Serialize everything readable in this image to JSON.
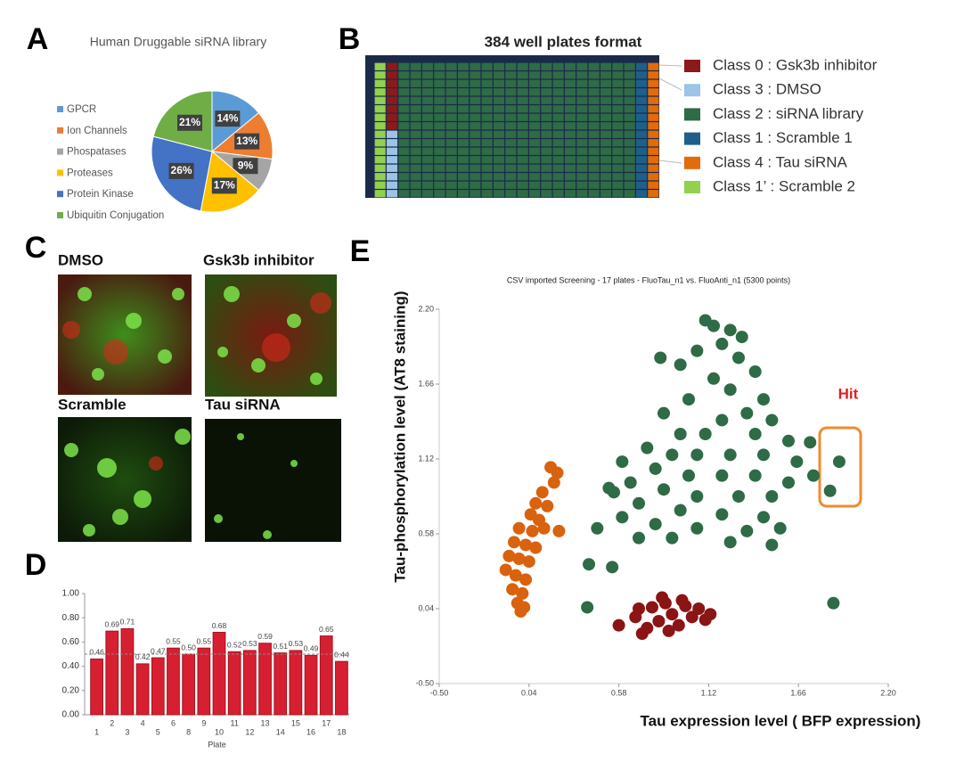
{
  "panel_letters": [
    "A",
    "B",
    "C",
    "D",
    "E"
  ],
  "plate": {
    "title": "384 well plates format",
    "legend": [
      {
        "label": "Class 0 : Gsk3b inhibitor",
        "color": "#8b1a1a"
      },
      {
        "label": "Class 3 : DMSO",
        "color": "#9dc3e6"
      },
      {
        "label": "Class 2 : siRNA library",
        "color": "#2e6b46"
      },
      {
        "label": "Class 1 : Scramble 1",
        "color": "#1f5f8b"
      },
      {
        "label": "Class 4 : Tau siRNA",
        "color": "#e26b0a"
      },
      {
        "label": "Class 1’ : Scramble 2",
        "color": "#92d050"
      }
    ]
  },
  "images": {
    "labels": [
      "DMSO",
      "Gsk3b inhibitor",
      "Scramble",
      "Tau siRNA"
    ]
  },
  "chart_data": [
    {
      "type": "pie",
      "title": "Human Druggable siRNA library",
      "categories": [
        "GPCR",
        "Ion Channels",
        "Phospatases",
        "Proteases",
        "Protein Kinase",
        "Ubiquitin Conjugation"
      ],
      "values": [
        14,
        13,
        9,
        17,
        26,
        21
      ],
      "value_labels": [
        "14%",
        "13%",
        "9%",
        "17%",
        "26%",
        "21%"
      ],
      "colors": [
        "#5b9bd5",
        "#ed7d31",
        "#a5a5a5",
        "#ffc000",
        "#4472c4",
        "#70ad47"
      ]
    },
    {
      "type": "bar",
      "x_label": "Plate",
      "categories": [
        "1",
        "2",
        "3",
        "4",
        "5",
        "6",
        "8",
        "9",
        "10",
        "11",
        "12",
        "13",
        "14",
        "15",
        "16",
        "17",
        "18"
      ],
      "values": [
        0.46,
        0.69,
        0.71,
        0.42,
        0.47,
        0.55,
        0.5,
        0.55,
        0.68,
        0.52,
        0.53,
        0.59,
        0.51,
        0.53,
        0.49,
        0.65,
        0.44
      ],
      "value_labels": [
        "0.46",
        "0.69",
        "0.71",
        "0.42",
        "0.47",
        "0.55",
        "0.50",
        "0.55",
        "0.68",
        "0.52",
        "0.53",
        "0.59",
        "0.51",
        "0.53",
        "0.49",
        "0.65",
        "0.44"
      ],
      "color": "#d62031",
      "hline": 0.5,
      "ylim": [
        0,
        1
      ],
      "yticks": [
        {
          "value": 0,
          "label": "0.00"
        },
        {
          "value": 0.2,
          "label": "0.20"
        },
        {
          "value": 0.4,
          "label": "0.40"
        },
        {
          "value": 0.6,
          "label": "0.60"
        },
        {
          "value": 0.8,
          "label": "0.80"
        },
        {
          "value": 1,
          "label": "1.00"
        }
      ]
    },
    {
      "type": "scatter",
      "title": "CSV imported Screening - 17 plates - FluoTau_n1 vs. FluoAnti_n1 (5300 points)",
      "x_label": "Tau expression level ( BFP expression)",
      "y_label": "Tau-phosphorylation level (AT8 staining)",
      "annotation": "Hit",
      "xlim": [
        -0.5,
        2.2
      ],
      "ylim": [
        -0.5,
        2.2
      ],
      "xticks": [
        {
          "value": -0.5,
          "label": "-0.50"
        },
        0.04,
        0.58,
        1.12,
        1.66,
        {
          "value": 2.2,
          "label": "2.20"
        }
      ],
      "yticks": [
        {
          "value": -0.5,
          "label": "-0.50"
        },
        0.04,
        0.58,
        1.12,
        1.66,
        {
          "value": 2.2,
          "label": "2.20"
        }
      ],
      "series": [
        {
          "color": "#2e6b46",
          "x": [
            1.1,
            1.15,
            1.25,
            1.32,
            1.2,
            1.05,
            0.95,
            1.3,
            1.4,
            1.15,
            1.25,
            1.45,
            1.0,
            0.85,
            1.35,
            1.5,
            1.2,
            0.95,
            1.1,
            1.4,
            1.6,
            0.75,
            0.9,
            1.05,
            1.25,
            1.45,
            1.65,
            0.6,
            0.8,
            1.0,
            1.2,
            1.4,
            1.6,
            1.75,
            0.65,
            0.85,
            1.05,
            1.3,
            1.5,
            0.55,
            0.7,
            0.95,
            1.2,
            1.45,
            0.6,
            0.8,
            1.05,
            1.35,
            1.55,
            0.45,
            0.9,
            1.25,
            0.7,
            0.83,
            1.73,
            1.905,
            1.85,
            1.87,
            0.39,
            0.4,
            0.54,
            1.5,
            0.52
          ],
          "y": [
            2.12,
            2.08,
            2.05,
            2.0,
            1.95,
            1.9,
            1.8,
            1.85,
            1.75,
            1.7,
            1.62,
            1.55,
            1.55,
            1.45,
            1.45,
            1.4,
            1.4,
            1.3,
            1.3,
            1.3,
            1.25,
            1.2,
            1.15,
            1.15,
            1.15,
            1.15,
            1.1,
            1.1,
            1.05,
            1.0,
            1.0,
            1.0,
            0.95,
            1.0,
            0.95,
            0.9,
            0.85,
            0.85,
            0.85,
            0.88,
            0.8,
            0.75,
            0.72,
            0.7,
            0.7,
            0.65,
            0.62,
            0.6,
            0.62,
            0.62,
            0.55,
            0.52,
            0.55,
            1.85,
            1.24,
            1.1,
            0.89,
            0.08,
            0.05,
            0.36,
            0.34,
            0.5,
            0.91
          ]
        },
        {
          "color": "#d9620f",
          "x": [
            0.17,
            0.21,
            0.19,
            0.12,
            0.08,
            0.15,
            0.05,
            0.1,
            -0.02,
            0.06,
            0.13,
            -0.05,
            0.02,
            0.08,
            -0.08,
            -0.02,
            0.04,
            -0.1,
            -0.04,
            0.02,
            -0.06,
            0.0,
            -0.03,
            0.01,
            -0.01,
            0.22
          ],
          "y": [
            1.06,
            1.02,
            0.95,
            0.88,
            0.8,
            0.78,
            0.72,
            0.68,
            0.62,
            0.6,
            0.62,
            0.52,
            0.5,
            0.48,
            0.42,
            0.4,
            0.38,
            0.32,
            0.28,
            0.25,
            0.18,
            0.15,
            0.08,
            0.05,
            0.02,
            0.6
          ]
        },
        {
          "color": "#8b1414",
          "x": [
            0.58,
            0.68,
            0.72,
            0.78,
            0.82,
            0.86,
            0.9,
            0.94,
            0.98,
            1.02,
            1.06,
            1.1,
            0.75,
            0.88,
            0.96,
            0.7,
            1.13,
            0.84
          ],
          "y": [
            -0.08,
            -0.02,
            -0.14,
            0.05,
            -0.05,
            0.08,
            0.0,
            -0.08,
            0.06,
            -0.02,
            0.04,
            -0.04,
            -0.1,
            -0.12,
            0.1,
            0.04,
            0.0,
            0.12
          ]
        }
      ]
    }
  ]
}
